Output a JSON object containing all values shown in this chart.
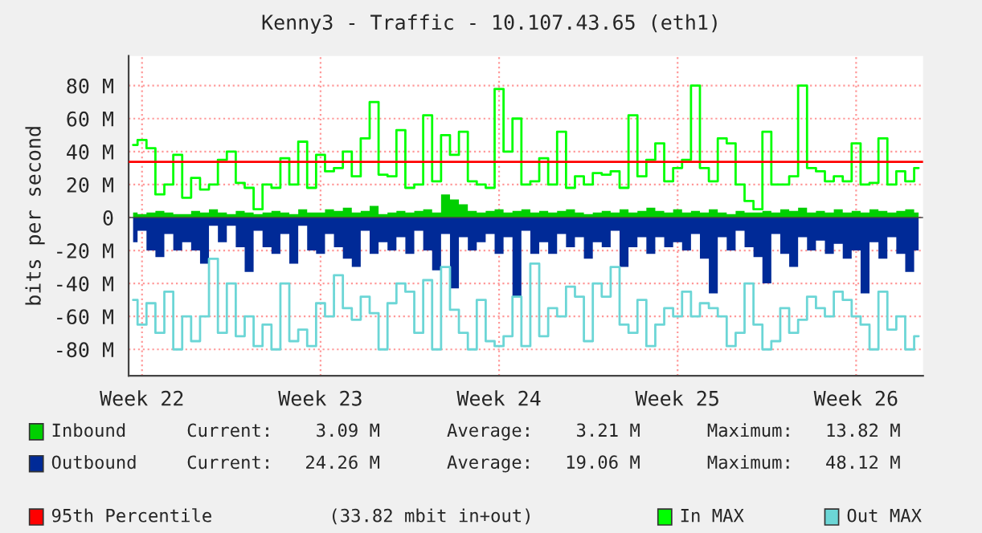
{
  "chart_data": {
    "type": "area",
    "title": "Kenny3 - Traffic - 10.107.43.65 (eth1)",
    "ylabel": "bits per second",
    "categories": [
      null,
      "Week 22",
      null,
      null,
      null,
      null,
      null,
      null,
      null,
      null,
      null,
      null,
      null,
      null,
      null,
      null,
      null,
      null,
      null,
      null,
      null,
      "Week 23",
      null,
      null,
      null,
      null,
      null,
      null,
      null,
      null,
      null,
      null,
      null,
      null,
      null,
      null,
      null,
      null,
      null,
      null,
      null,
      "Week 24",
      null,
      null,
      null,
      null,
      null,
      null,
      null,
      null,
      null,
      null,
      null,
      null,
      null,
      null,
      null,
      null,
      null,
      null,
      null,
      "Week 25",
      null,
      null,
      null,
      null,
      null,
      null,
      null,
      null,
      null,
      null,
      null,
      null,
      null,
      null,
      null,
      null,
      null,
      null,
      null,
      "Week 26",
      null,
      null,
      null,
      null,
      null,
      null,
      null
    ],
    "series": [
      {
        "name": "Inbound",
        "color": "#00cf00",
        "values": [
          3,
          2,
          3,
          4,
          3,
          2,
          2,
          4,
          3,
          5,
          3,
          2,
          4,
          3,
          2,
          3,
          4,
          3,
          2,
          5,
          3,
          3,
          5,
          4,
          6,
          3,
          4,
          7,
          2,
          3,
          4,
          3,
          4,
          5,
          3,
          14,
          11,
          8,
          4,
          3,
          4,
          5,
          3,
          4,
          5,
          3,
          4,
          3,
          4,
          5,
          3,
          2,
          3,
          4,
          3,
          5,
          3,
          4,
          6,
          4,
          3,
          5,
          3,
          4,
          3,
          5,
          3,
          2,
          4,
          3,
          3,
          4,
          3,
          5,
          4,
          6,
          3,
          4,
          3,
          5,
          3,
          4,
          3,
          5,
          4,
          3,
          4,
          5,
          3
        ]
      },
      {
        "name": "Outbound",
        "color": "#002a97",
        "values": [
          -15,
          -8,
          -20,
          -24,
          -10,
          -20,
          -15,
          -20,
          -28,
          -5,
          -15,
          -5,
          -18,
          -33,
          -8,
          -18,
          -22,
          -10,
          -28,
          -5,
          -20,
          -22,
          -10,
          -18,
          -25,
          -30,
          -8,
          -22,
          -15,
          -20,
          -12,
          -22,
          -8,
          -20,
          -32,
          -10,
          -43,
          -12,
          -20,
          -15,
          -10,
          -22,
          -12,
          -48,
          -8,
          -22,
          -15,
          -22,
          -10,
          -18,
          -12,
          -25,
          -15,
          -18,
          -8,
          -30,
          -18,
          -12,
          -22,
          -12,
          -18,
          -15,
          -20,
          -10,
          -25,
          -46,
          -12,
          -20,
          -8,
          -18,
          -24,
          -40,
          -10,
          -22,
          -30,
          -12,
          -20,
          -14,
          -22,
          -16,
          -25,
          -20,
          -46,
          -15,
          -25,
          -12,
          -22,
          -33,
          -20
        ]
      },
      {
        "name": "In MAX",
        "type": "step",
        "color": "#00ff00",
        "values": [
          44,
          47,
          42,
          14,
          20,
          38,
          12,
          24,
          17,
          20,
          35,
          40,
          21,
          18,
          5,
          20,
          18,
          36,
          20,
          46,
          18,
          38,
          28,
          30,
          40,
          25,
          48,
          70,
          26,
          25,
          53,
          18,
          20,
          62,
          22,
          50,
          38,
          52,
          22,
          20,
          18,
          78,
          40,
          60,
          20,
          22,
          36,
          20,
          52,
          18,
          25,
          20,
          27,
          26,
          28,
          18,
          62,
          25,
          35,
          45,
          22,
          30,
          35,
          80,
          30,
          22,
          48,
          45,
          20,
          10,
          5,
          52,
          20,
          20,
          25,
          80,
          30,
          28,
          22,
          25,
          22,
          45,
          20,
          21,
          48,
          20,
          28,
          22,
          30
        ]
      },
      {
        "name": "Out MAX",
        "type": "step",
        "color": "#6cd6d6",
        "values": [
          -50,
          -65,
          -52,
          -70,
          -45,
          -80,
          -60,
          -75,
          -60,
          -25,
          -70,
          -40,
          -72,
          -60,
          -78,
          -65,
          -80,
          -40,
          -75,
          -68,
          -78,
          -52,
          -60,
          -35,
          -55,
          -62,
          -48,
          -58,
          -80,
          -52,
          -40,
          -45,
          -70,
          -38,
          -80,
          -30,
          -56,
          -70,
          -80,
          -50,
          -75,
          -78,
          -72,
          -48,
          -78,
          -28,
          -72,
          -55,
          -60,
          -42,
          -48,
          -75,
          -40,
          -48,
          -30,
          -65,
          -70,
          -50,
          -78,
          -65,
          -55,
          -60,
          -45,
          -60,
          -52,
          -55,
          -60,
          -78,
          -70,
          -40,
          -65,
          -80,
          -75,
          -55,
          -70,
          -62,
          -48,
          -55,
          -60,
          -45,
          -50,
          -60,
          -65,
          -80,
          -45,
          -68,
          -60,
          -80,
          -72
        ]
      }
    ],
    "ref_lines": [
      {
        "axis": "y",
        "value": 33.82,
        "label": "95th Percentile",
        "color": "#ff0000"
      }
    ],
    "annotations": [
      "Current:    3.09 M",
      "Average:    3.21 M",
      "Maximum:   13.82 M",
      "Current:   24.26 M",
      "Average:   19.06 M",
      "Maximum:   48.12 M",
      "(33.82 mbit in+out)"
    ],
    "ylim": [
      -96,
      98
    ],
    "yticks": [
      {
        "value": -80,
        "label": "-80 M"
      },
      {
        "value": -60,
        "label": "-60 M"
      },
      {
        "value": -40,
        "label": "-40 M"
      },
      {
        "value": -20,
        "label": "-20 M"
      },
      0,
      {
        "value": 20,
        "label": "20 M"
      },
      {
        "value": 40,
        "label": "40 M"
      },
      {
        "value": 60,
        "label": "60 M"
      },
      {
        "value": 80,
        "label": "80 M"
      }
    ],
    "grid": true,
    "legend": "bottom"
  }
}
